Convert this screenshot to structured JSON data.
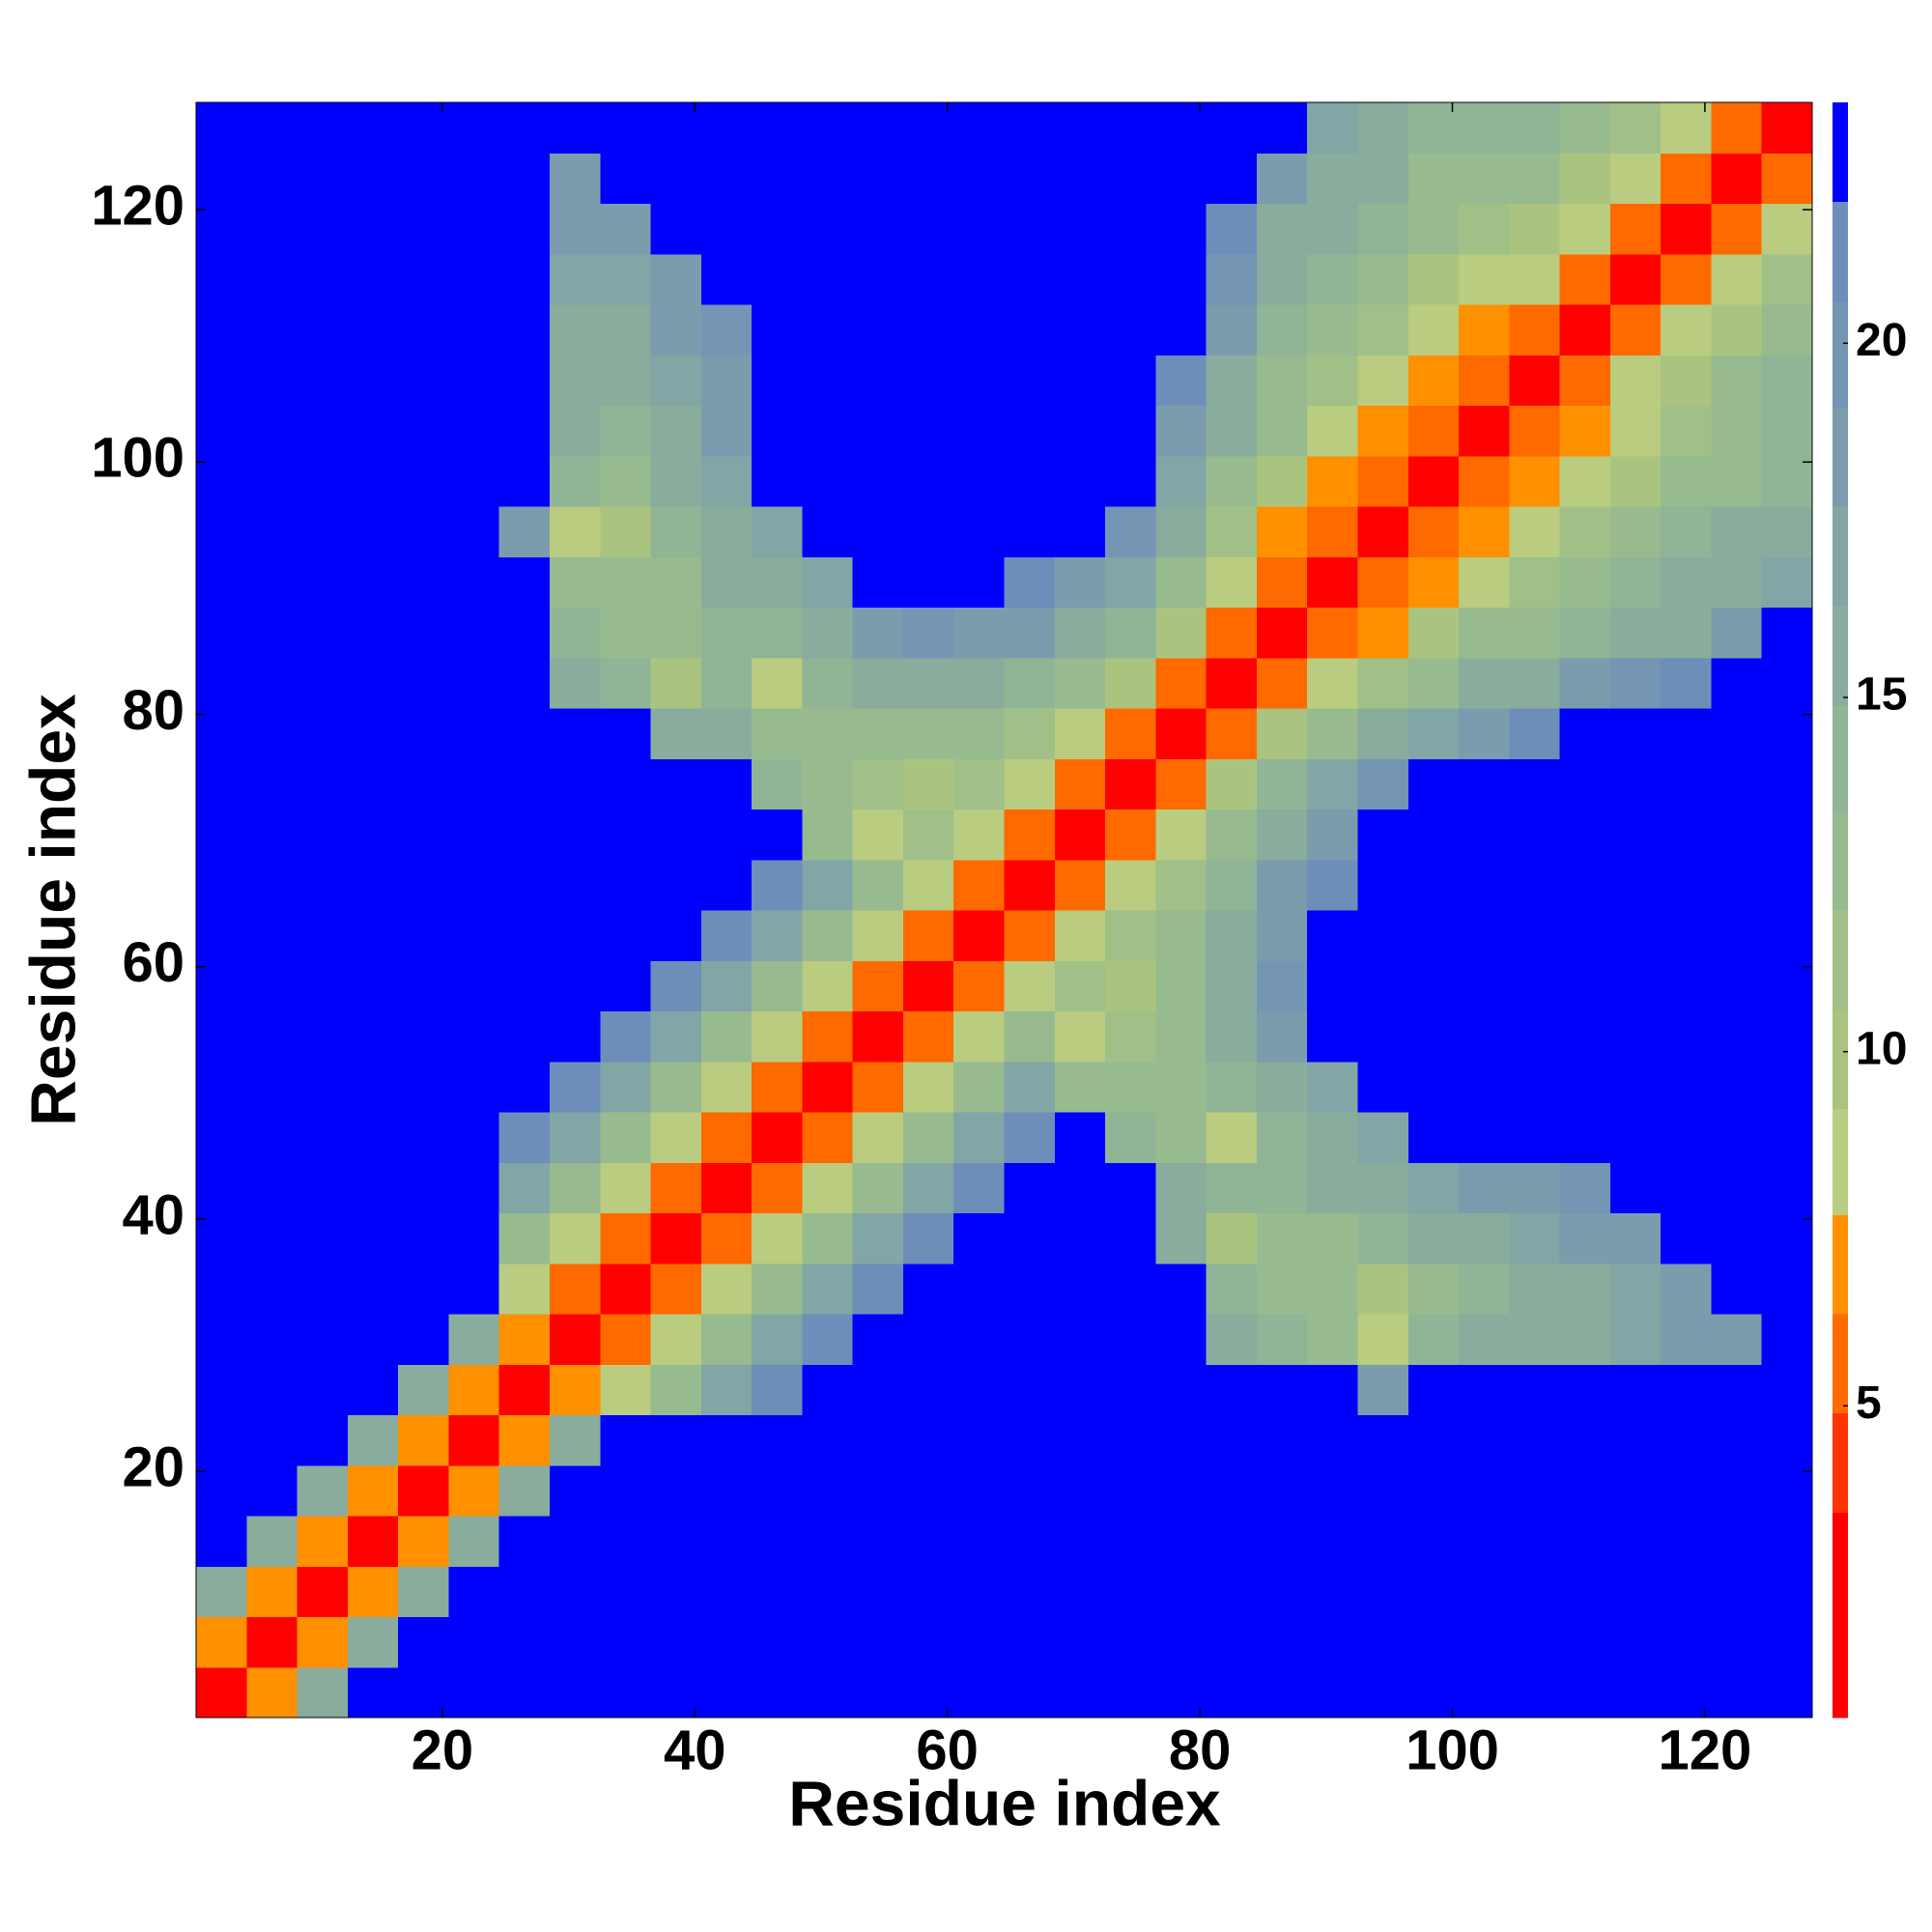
{
  "chart_data": {
    "type": "heatmap",
    "xlabel": "Residue index",
    "ylabel": "Residue index",
    "xlim": [
      0.5,
      128.5
    ],
    "ylim": [
      0.5,
      128.5
    ],
    "xticks": [
      20,
      40,
      60,
      80,
      100,
      120
    ],
    "yticks": [
      20,
      40,
      60,
      80,
      100,
      120
    ],
    "bins": [
      0.5,
      4.5,
      8.5,
      12.5,
      16.5,
      20.5,
      24.5,
      28.5,
      32.5,
      36.5,
      40.5,
      44.5,
      48.5,
      52.5,
      56.5,
      60.5,
      64.5,
      68.5,
      72.5,
      76.5,
      80.5,
      84.5,
      88.5,
      92.5,
      96.5,
      100.5,
      104.5,
      108.5,
      112.5,
      116.5,
      120.5,
      124.5,
      128.5
    ],
    "z": [
      [
        1,
        7,
        16,
        23,
        23,
        23,
        23,
        23,
        23,
        23,
        23,
        23,
        23,
        23,
        23,
        23,
        23,
        23,
        23,
        23,
        23,
        23,
        23,
        23,
        23,
        23,
        23,
        23,
        23,
        23,
        23,
        23
      ],
      [
        7,
        1,
        7,
        16,
        23,
        23,
        23,
        23,
        23,
        23,
        23,
        23,
        23,
        23,
        23,
        23,
        23,
        23,
        23,
        23,
        23,
        23,
        23,
        23,
        23,
        23,
        23,
        23,
        23,
        23,
        23,
        23
      ],
      [
        16,
        7,
        1,
        7,
        16,
        23,
        23,
        23,
        23,
        23,
        23,
        23,
        23,
        23,
        23,
        23,
        23,
        23,
        23,
        23,
        23,
        23,
        23,
        23,
        23,
        23,
        23,
        23,
        23,
        23,
        23,
        23
      ],
      [
        23,
        16,
        7,
        1,
        7,
        16,
        23,
        23,
        23,
        23,
        23,
        23,
        23,
        23,
        23,
        23,
        23,
        23,
        23,
        23,
        23,
        23,
        23,
        23,
        23,
        23,
        23,
        23,
        23,
        23,
        23,
        23
      ],
      [
        23,
        23,
        16,
        7,
        1,
        7,
        16,
        23,
        23,
        23,
        23,
        23,
        23,
        23,
        23,
        23,
        23,
        23,
        23,
        23,
        23,
        23,
        23,
        23,
        23,
        23,
        23,
        23,
        23,
        23,
        23,
        23
      ],
      [
        23,
        23,
        23,
        16,
        7,
        1,
        7,
        16,
        23,
        23,
        23,
        23,
        23,
        23,
        23,
        23,
        23,
        23,
        23,
        23,
        23,
        23,
        23,
        23,
        23,
        23,
        23,
        23,
        23,
        23,
        23,
        23
      ],
      [
        23,
        23,
        23,
        23,
        16,
        7,
        1,
        7,
        9,
        13,
        17,
        21,
        23,
        23,
        23,
        23,
        23,
        23,
        23,
        23,
        23,
        23,
        23,
        18,
        23,
        23,
        23,
        23,
        23,
        23,
        23,
        23
      ],
      [
        23,
        23,
        23,
        23,
        23,
        16,
        7,
        1,
        5,
        9,
        13,
        17,
        21,
        23,
        23,
        23,
        23,
        23,
        23,
        23,
        15,
        14,
        13,
        9,
        14,
        15,
        16,
        16,
        17,
        18,
        19,
        23
      ],
      [
        23,
        23,
        23,
        23,
        23,
        23,
        9,
        5,
        1,
        5,
        9,
        13,
        17,
        21,
        23,
        23,
        23,
        23,
        23,
        23,
        14,
        13,
        12,
        10,
        13,
        14,
        15,
        16,
        17,
        19,
        23,
        23
      ],
      [
        23,
        23,
        23,
        23,
        23,
        23,
        13,
        9,
        5,
        1,
        5,
        9,
        13,
        17,
        21,
        23,
        23,
        23,
        23,
        15,
        10,
        13,
        13,
        14,
        15,
        16,
        17,
        18,
        19,
        23,
        23,
        23
      ],
      [
        23,
        23,
        23,
        23,
        23,
        23,
        17,
        13,
        9,
        5,
        1,
        5,
        9,
        13,
        17,
        21,
        23,
        23,
        23,
        15,
        14,
        14,
        15,
        16,
        17,
        18,
        19,
        20,
        23,
        23,
        23,
        23
      ],
      [
        23,
        23,
        23,
        23,
        23,
        23,
        21,
        17,
        13,
        9,
        5,
        1,
        5,
        9,
        13,
        17,
        21,
        23,
        14,
        13,
        9,
        14,
        15,
        17,
        23,
        23,
        23,
        23,
        23,
        23,
        23,
        23
      ],
      [
        23,
        23,
        23,
        23,
        23,
        23,
        23,
        21,
        17,
        13,
        9,
        5,
        1,
        5,
        9,
        13,
        17,
        13,
        12,
        13,
        14,
        15,
        17,
        23,
        23,
        23,
        23,
        23,
        23,
        23,
        23,
        23
      ],
      [
        23,
        23,
        23,
        23,
        23,
        23,
        23,
        23,
        21,
        17,
        13,
        9,
        5,
        1,
        5,
        9,
        13,
        9,
        11,
        13,
        15,
        18,
        23,
        23,
        23,
        23,
        23,
        23,
        23,
        23,
        23,
        23
      ],
      [
        23,
        23,
        23,
        23,
        23,
        23,
        23,
        23,
        23,
        21,
        17,
        13,
        9,
        5,
        1,
        5,
        8,
        11,
        10,
        12,
        15,
        20,
        23,
        23,
        23,
        23,
        23,
        23,
        23,
        23,
        23,
        23
      ],
      [
        23,
        23,
        23,
        23,
        23,
        23,
        23,
        23,
        23,
        23,
        21,
        17,
        13,
        9,
        5,
        1,
        5,
        8,
        11,
        13,
        16,
        19,
        23,
        23,
        23,
        23,
        23,
        23,
        23,
        23,
        23,
        23
      ],
      [
        23,
        23,
        23,
        23,
        23,
        23,
        23,
        23,
        23,
        23,
        23,
        21,
        17,
        13,
        8,
        5,
        1,
        5,
        8,
        11,
        14,
        18,
        21,
        23,
        23,
        23,
        23,
        23,
        23,
        23,
        23,
        23
      ],
      [
        23,
        23,
        23,
        23,
        23,
        23,
        23,
        23,
        23,
        23,
        23,
        23,
        13,
        9,
        11,
        8,
        5,
        1,
        5,
        9,
        13,
        16,
        19,
        22,
        23,
        23,
        23,
        23,
        23,
        23,
        23,
        23
      ],
      [
        23,
        23,
        23,
        23,
        23,
        23,
        23,
        23,
        23,
        23,
        23,
        14,
        12,
        11,
        10,
        11,
        8,
        5,
        1,
        5,
        10,
        14,
        17,
        20,
        23,
        23,
        23,
        23,
        23,
        23,
        23,
        23
      ],
      [
        23,
        23,
        23,
        23,
        23,
        23,
        23,
        23,
        23,
        15,
        15,
        13,
        13,
        13,
        12,
        13,
        11,
        9,
        5,
        1,
        5,
        10,
        13,
        15,
        17,
        19,
        21,
        23,
        23,
        23,
        23,
        23
      ],
      [
        23,
        23,
        23,
        23,
        23,
        23,
        23,
        15,
        14,
        10,
        14,
        9,
        14,
        15,
        15,
        16,
        14,
        13,
        10,
        5,
        1,
        5,
        9,
        11,
        13,
        15,
        16,
        18,
        20,
        21,
        23,
        23
      ],
      [
        23,
        23,
        23,
        23,
        23,
        23,
        23,
        14,
        13,
        13,
        14,
        14,
        15,
        18,
        20,
        19,
        18,
        16,
        14,
        10,
        5,
        1,
        5,
        7,
        10,
        12,
        13,
        14,
        15,
        16,
        18,
        23
      ],
      [
        23,
        23,
        23,
        23,
        23,
        23,
        23,
        13,
        12,
        13,
        15,
        15,
        17,
        23,
        23,
        23,
        21,
        19,
        17,
        13,
        9,
        5,
        1,
        5,
        7,
        9,
        11,
        12,
        14,
        15,
        16,
        17
      ],
      [
        23,
        23,
        23,
        23,
        23,
        23,
        18,
        9,
        10,
        14,
        16,
        17,
        23,
        23,
        23,
        23,
        23,
        22,
        20,
        15,
        11,
        7,
        5,
        1,
        5,
        7,
        9,
        11,
        12,
        14,
        15,
        16
      ],
      [
        23,
        23,
        23,
        23,
        23,
        23,
        23,
        14,
        13,
        15,
        17,
        23,
        23,
        23,
        23,
        23,
        23,
        23,
        23,
        17,
        13,
        10,
        7,
        5,
        1,
        5,
        7,
        8,
        10,
        12,
        13,
        14
      ],
      [
        23,
        23,
        23,
        23,
        23,
        23,
        23,
        15,
        14,
        16,
        18,
        23,
        23,
        23,
        23,
        23,
        23,
        23,
        23,
        19,
        15,
        12,
        9,
        7,
        5,
        1,
        5,
        7,
        9,
        11,
        13,
        14
      ],
      [
        23,
        23,
        23,
        23,
        23,
        23,
        23,
        16,
        15,
        17,
        19,
        23,
        23,
        23,
        23,
        23,
        23,
        23,
        23,
        21,
        16,
        13,
        11,
        9,
        7,
        5,
        1,
        5,
        8,
        10,
        12,
        14
      ],
      [
        23,
        23,
        23,
        23,
        23,
        23,
        23,
        16,
        16,
        18,
        20,
        23,
        23,
        23,
        23,
        23,
        23,
        23,
        23,
        23,
        18,
        14,
        12,
        11,
        8,
        7,
        5,
        1,
        5,
        8,
        10,
        12
      ],
      [
        23,
        23,
        23,
        23,
        23,
        23,
        23,
        17,
        17,
        19,
        23,
        23,
        23,
        23,
        23,
        23,
        23,
        23,
        23,
        23,
        20,
        15,
        14,
        12,
        10,
        9,
        8,
        5,
        1,
        5,
        8,
        11
      ],
      [
        23,
        23,
        23,
        23,
        23,
        23,
        23,
        18,
        19,
        23,
        23,
        23,
        23,
        23,
        23,
        23,
        23,
        23,
        23,
        23,
        21,
        16,
        15,
        14,
        12,
        11,
        10,
        8,
        5,
        1,
        5,
        9
      ],
      [
        23,
        23,
        23,
        23,
        23,
        23,
        23,
        19,
        23,
        23,
        23,
        23,
        23,
        23,
        23,
        23,
        23,
        23,
        23,
        23,
        23,
        18,
        16,
        15,
        13,
        13,
        12,
        10,
        8,
        5,
        1,
        5
      ],
      [
        23,
        23,
        23,
        23,
        23,
        23,
        23,
        23,
        23,
        23,
        23,
        23,
        23,
        23,
        23,
        23,
        23,
        23,
        23,
        23,
        23,
        23,
        17,
        16,
        14,
        14,
        14,
        12,
        11,
        9,
        5,
        1
      ]
    ],
    "colorbar": {
      "levels": [
        0.6,
        3.5,
        4.9,
        6.3,
        7.7,
        9.2,
        10.6,
        12.0,
        13.4,
        14.9,
        16.3,
        17.7,
        19.1,
        20.6,
        22.0,
        23.4
      ],
      "colors": [
        "#ff0000",
        "#ff3300",
        "#ff6a00",
        "#ff9000",
        "#b9cc7f",
        "#aac47f",
        "#a0c088",
        "#98ba8f",
        "#90b496",
        "#89ac9d",
        "#82a5a5",
        "#7b9cac",
        "#7495b3",
        "#6d8eb8",
        "#0000ff"
      ],
      "ticks": [
        5,
        10,
        15,
        20
      ]
    }
  }
}
